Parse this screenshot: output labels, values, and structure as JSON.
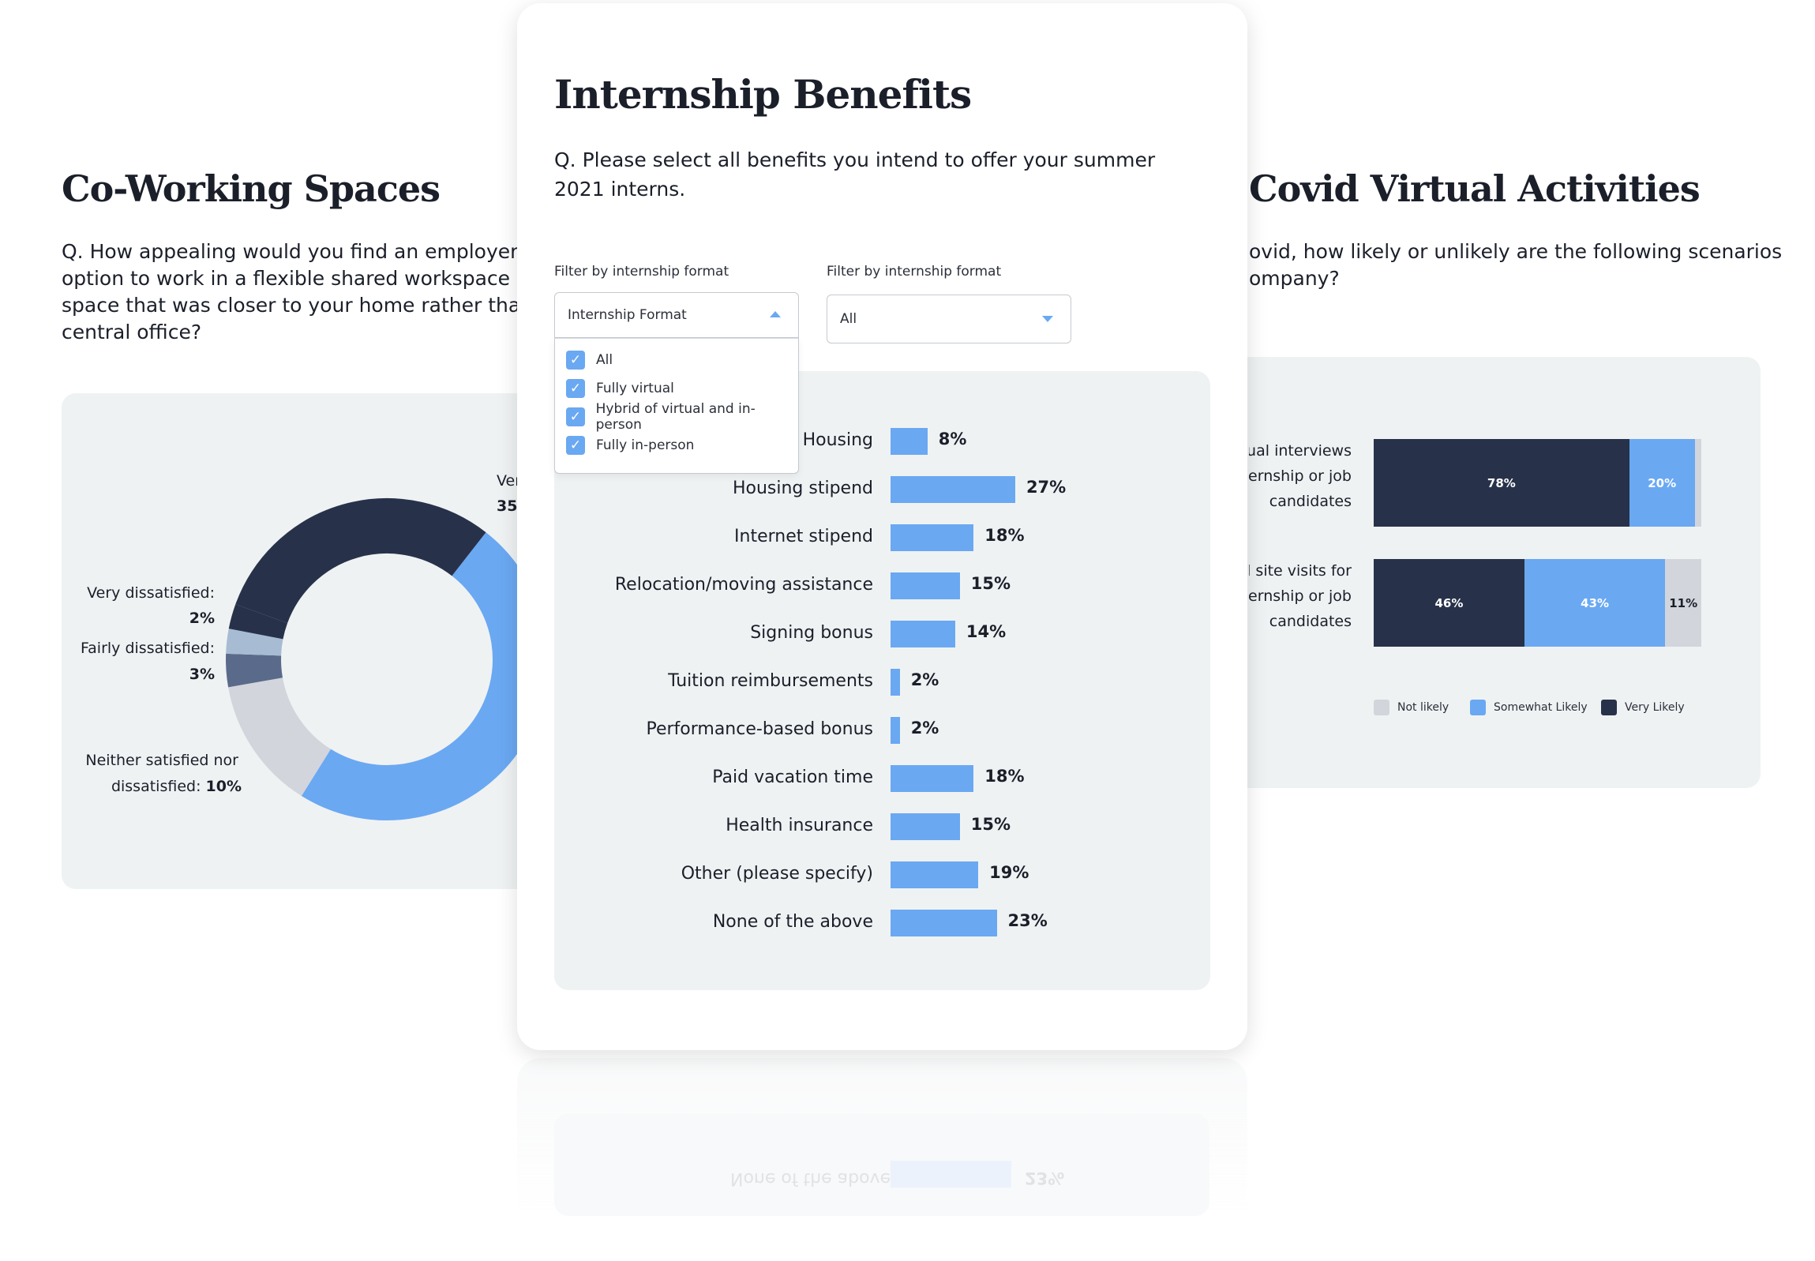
{
  "colors": {
    "dark_navy": "#27324a",
    "bar_blue": "#6aa8f2",
    "light_gray": "#d3d5dc",
    "slate": "#5a6a8a",
    "pale_blue": "#a7bbd3",
    "panel": "#eff2f3"
  },
  "left_card": {
    "title": "Co-Working Spaces",
    "question": [
      "Q. How appealing would you find an employer that off",
      "option to work in a flexible shared workspace or co-wo",
      "space that was closer to your home rather than commu",
      "central office?"
    ],
    "donut_labels": {
      "very_partial_line1": "Ver",
      "very_partial_line2": "35",
      "very_dissatisfied_label": "Very dissatisfied:",
      "very_dissatisfied_value": "2%",
      "fairly_dissatisfied_label": "Fairly dissatisfied:",
      "fairly_dissatisfied_value": "3%",
      "neither_line1": "Neither satisfied nor",
      "neither_line2_text": "dissatisfied:",
      "neither_line2_value": "10%"
    }
  },
  "center_card": {
    "title": "Internship Benefits",
    "question": [
      "Q. Please select all benefits you intend to offer your summer",
      "2021 interns."
    ],
    "filter1": {
      "label": "Filter by internship format",
      "placeholder": "Internship Format",
      "options": [
        {
          "label": "All",
          "checked": true
        },
        {
          "label": "Fully virtual",
          "checked": true
        },
        {
          "label": "Hybrid of virtual and in-person",
          "checked": true
        },
        {
          "label": "Fully in-person",
          "checked": true
        }
      ]
    },
    "filter2": {
      "label": "Filter by internship format",
      "value": "All"
    },
    "reflection_text": {
      "label": "None of the above",
      "value": "23%"
    }
  },
  "chart_data": {
    "type": "bar",
    "orientation": "horizontal",
    "categories": [
      "Housing",
      "Housing stipend",
      "Internet stipend",
      "Relocation/moving assistance",
      "Signing bonus",
      "Tuition reimbursements",
      "Performance-based bonus",
      "Paid vacation time",
      "Health insurance",
      "Other (please specify)",
      "None of the above"
    ],
    "values": [
      8,
      27,
      18,
      15,
      14,
      2,
      2,
      18,
      15,
      19,
      23
    ],
    "value_labels": [
      "8%",
      "27%",
      "18%",
      "15%",
      "14%",
      "2%",
      "2%",
      "18%",
      "15%",
      "19%",
      "23%"
    ],
    "xlim": [
      0,
      100
    ],
    "grid": false
  },
  "right_card": {
    "title": "Covid Virtual Activities",
    "question": [
      "ovid, how likely or unlikely are the following scenarios",
      "ompany?"
    ],
    "rows": [
      {
        "label_lines": [
          "tual interviews",
          "ternship or job",
          "candidates"
        ],
        "very_likely": 78,
        "somewhat_likely": 20,
        "not_likely": 2,
        "labels": {
          "very": "78%",
          "somewhat": "20%",
          "not": ""
        }
      },
      {
        "label_lines": [
          "al site visits for",
          "ternship or job",
          "candidates"
        ],
        "very_likely": 46,
        "somewhat_likely": 43,
        "not_likely": 11,
        "labels": {
          "very": "46%",
          "somewhat": "43%",
          "not": "11%"
        }
      }
    ],
    "legend": [
      {
        "label": "Not likely",
        "color": "#d3d5dc"
      },
      {
        "label": "Somewhat Likely",
        "color": "#6aa8f2"
      },
      {
        "label": "Very Likely",
        "color": "#27324a"
      }
    ]
  }
}
